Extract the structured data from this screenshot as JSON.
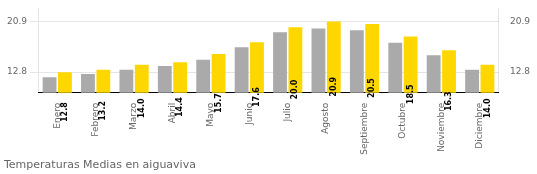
{
  "chart_data": {
    "type": "bar",
    "title": "Temperaturas Medias en aiguaviva",
    "categories": [
      "Enero",
      "Febrero",
      "Marzo",
      "Abril",
      "Mayo",
      "Junio",
      "Julio",
      "Agosto",
      "Septiembre",
      "Octubre",
      "Noviembre",
      "Diciembre"
    ],
    "series": [
      {
        "color": "#AAAAAA",
        "values": [
          12.0,
          12.5,
          13.2,
          13.8,
          14.8,
          16.8,
          19.2,
          19.8,
          19.5,
          17.5,
          15.5,
          13.2
        ]
      },
      {
        "color": "#FFD700",
        "values": [
          12.8,
          13.2,
          14.0,
          14.4,
          15.7,
          17.6,
          20.0,
          20.9,
          20.5,
          18.5,
          16.3,
          14.0
        ],
        "data_labels": true,
        "value_labels": [
          "12.8",
          "13.2",
          "14.0",
          "14.4",
          "15.7",
          "17.6",
          "20.0",
          "20.9",
          "20.5",
          "18.5",
          "16.3",
          "14.0"
        ]
      }
    ],
    "ylim": [
      9.5,
      23.0
    ],
    "yticks": [
      12.8,
      20.9
    ],
    "y2lim": [
      9.5,
      23.0
    ],
    "y2ticks": [
      12.8,
      20.9
    ],
    "grid": true
  }
}
